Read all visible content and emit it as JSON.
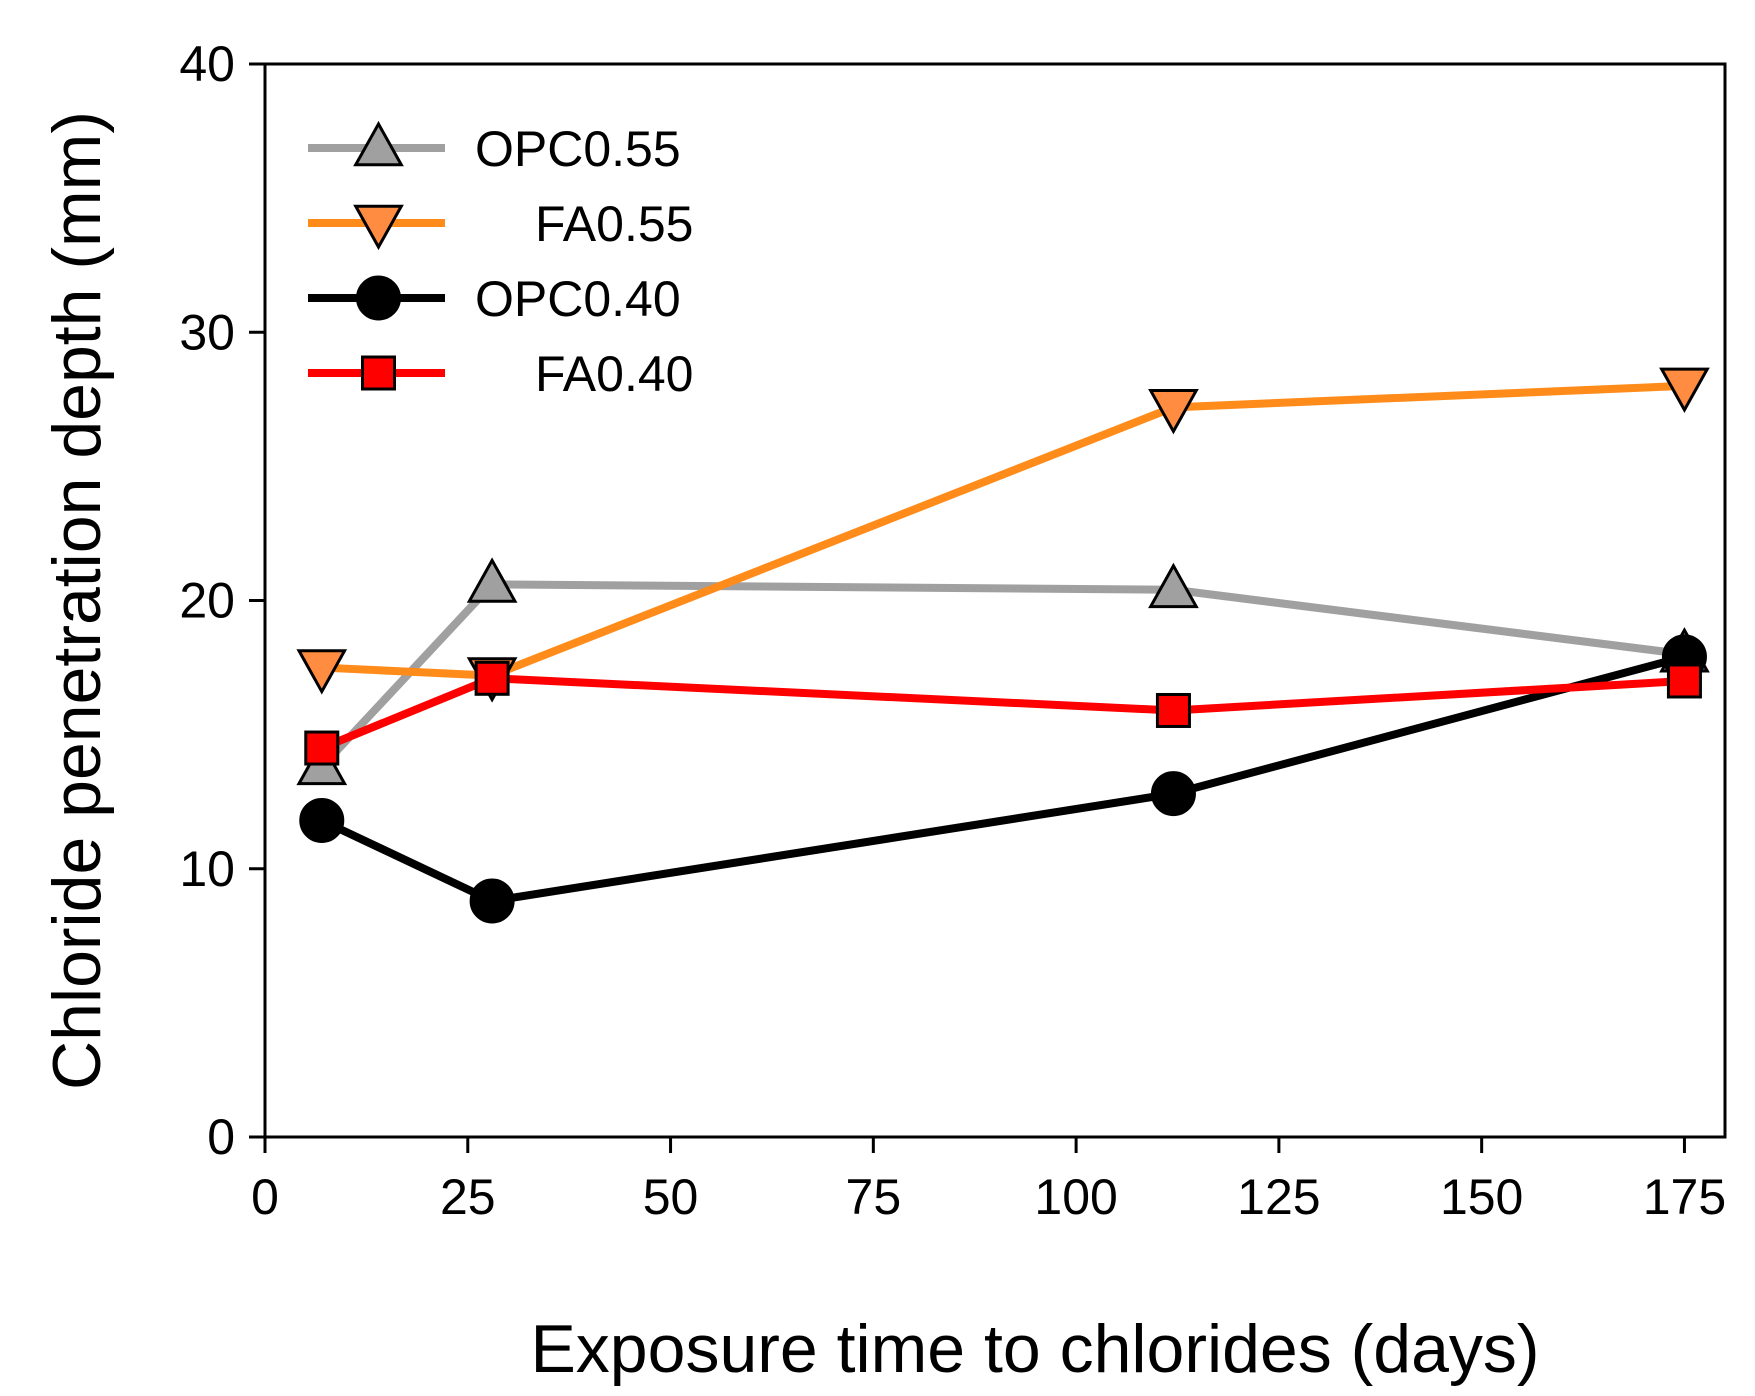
{
  "chart_data": {
    "type": "line",
    "title": "",
    "xlabel": "Exposure time to chlorides (days)",
    "ylabel": "Chloride penetration depth (mm)",
    "xlim": [
      0,
      180
    ],
    "ylim": [
      0,
      40
    ],
    "xticks": [
      0,
      25,
      50,
      75,
      100,
      125,
      150,
      175
    ],
    "yticks": [
      0,
      10,
      20,
      30,
      40
    ],
    "grid": false,
    "legend_position": "top-left",
    "series": [
      {
        "name": "OPC0.55",
        "color": "#a0a0a0",
        "marker": "triangle-up",
        "marker_fill": "#a0a0a0",
        "x": [
          7,
          28,
          112,
          175
        ],
        "y": [
          13.8,
          20.6,
          20.4,
          18.0
        ]
      },
      {
        "name": "FA0.55",
        "color": "#ff8c1a",
        "marker": "triangle-down",
        "marker_fill": "#ff8c40",
        "x": [
          7,
          28,
          112,
          175
        ],
        "y": [
          17.5,
          17.2,
          27.2,
          28.0
        ]
      },
      {
        "name": "OPC0.40",
        "color": "#000000",
        "marker": "circle",
        "marker_fill": "#000000",
        "x": [
          7,
          28,
          112,
          175
        ],
        "y": [
          11.8,
          8.8,
          12.8,
          17.9
        ]
      },
      {
        "name": "FA0.40",
        "color": "#ff0000",
        "marker": "square",
        "marker_fill": "#ff0000",
        "x": [
          7,
          28,
          112,
          175
        ],
        "y": [
          14.5,
          17.1,
          15.9,
          17.0
        ]
      }
    ]
  }
}
